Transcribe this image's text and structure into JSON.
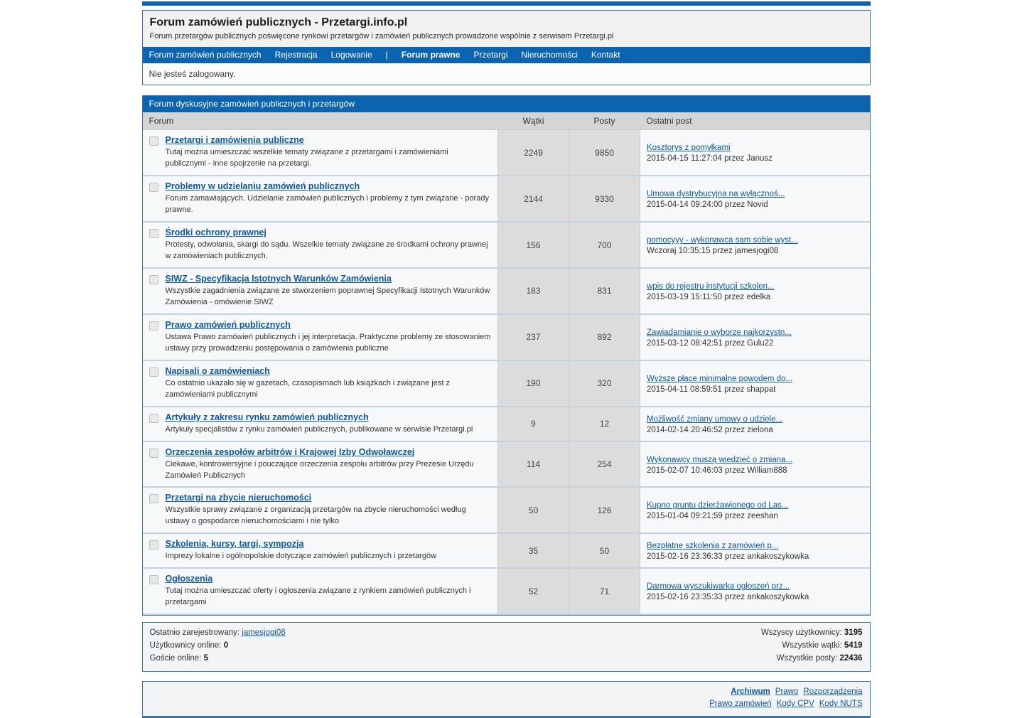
{
  "colors": {
    "accent": "#0d64ae",
    "border": "#3a72aa",
    "link": "#0f58a0"
  },
  "header": {
    "title": "Forum zamówień publicznych - Przetargi.info.pl",
    "subtitle": "Forum przetargów publicznych poświęcone rynkowi przetargów i zamówień publicznych prowadzone wspólnie z serwisem Przetargi.pl"
  },
  "nav": {
    "items": [
      {
        "label": "Forum zamówień publicznych"
      },
      {
        "label": "Rejestracja"
      },
      {
        "label": "Logowanie"
      },
      {
        "label": "|",
        "separator": true
      },
      {
        "label": "Forum prawne",
        "active": true
      },
      {
        "label": "Przetargi"
      },
      {
        "label": "Nieruchomości"
      },
      {
        "label": "Kontakt"
      }
    ]
  },
  "status": {
    "message": "Nie jesteś zalogowany."
  },
  "board": {
    "section_title": "Forum dyskusyjne zamówień publicznych i przetargów",
    "columns": {
      "forum": "Forum",
      "threads": "Wątki",
      "posts": "Posty",
      "last_post": "Ostatni post"
    },
    "forums": [
      {
        "name": "Przetargi i zamówienia publiczne",
        "description": "Tutaj można umieszczać wszelkie tematy związane z przetargami i zamówieniami publicznymi - inne spojrzenie na przetargi.",
        "threads": "2249",
        "posts": "9850",
        "last_post_title": "Kosztorys z pomyłkami",
        "last_post_meta": "2015-04-15 11:27:04 przez Janusz"
      },
      {
        "name": "Problemy w udzielaniu zamówień publicznych",
        "description": "Forum zamawiających. Udzielanie zamówień publicznych i problemy z tym związane - porady prawne.",
        "threads": "2144",
        "posts": "9330",
        "last_post_title": "Umowa dystrybucyjna na wyłącznoś...",
        "last_post_meta": "2015-04-14 09:24:00 przez Novid"
      },
      {
        "name": "Środki ochrony prawnej",
        "description": "Protesty, odwołania, skargi do sądu. Wszelkie tematy związane ze środkami ochrony prawnej w zamówieniach publicznych.",
        "threads": "156",
        "posts": "700",
        "last_post_title": "pomocyyy - wykonawca sam sobie wyst...",
        "last_post_meta": "Wczoraj 10:35:15 przez jamesjogi08"
      },
      {
        "name": "SIWZ - Specyfikacja Istotnych Warunków Zamówienia",
        "description": "Wszystkie zagadnienia związane ze stworzeniem poprawnej Specyfikacji Istotnych Warunków Zamówienia - omówienie SIWZ",
        "threads": "183",
        "posts": "831",
        "last_post_title": "wpis do rejestru instytucji szkolen...",
        "last_post_meta": "2015-03-19 15:11:50 przez edelka"
      },
      {
        "name": "Prawo zamówień publicznych",
        "description": "Ustawa Prawo zamówień publicznych i jej interpretacja. Praktyczne problemy ze stosowaniem ustawy przy prowadzeniu postępowania o zamówienia publiczne",
        "threads": "237",
        "posts": "892",
        "last_post_title": "Zawiadamianie o wyborze najkorzystn...",
        "last_post_meta": "2015-03-12 08:42:51 przez Gulu22"
      },
      {
        "name": "Napisali o zamówieniach",
        "description": "Co ostatnio ukazało się w gazetach, czasopismach lub książkach i związane jest z zamówieniami publicznymi",
        "threads": "190",
        "posts": "320",
        "last_post_title": "Wyższe płace minimalne powodem do...",
        "last_post_meta": "2015-04-11 08:59:51 przez shappat"
      },
      {
        "name": "Artykuły z zakresu rynku zamówień publicznych",
        "description": "Artykuły specjalistów z rynku zamówień publicznych, publikowane w serwisie Przetargi.pl",
        "threads": "9",
        "posts": "12",
        "last_post_title": "Możliwość zmiany umowy o udziele...",
        "last_post_meta": "2014-02-14 20:46:52 przez zielona"
      },
      {
        "name": "Orzeczenia zespołów arbitrów i Krajowej Izby Odwoławczej",
        "description": "Ciekawe, kontrowersyjne i pouczające orzeczenia zespołu arbitrów przy Prezesie Urzędu Zamówień Publicznych",
        "threads": "114",
        "posts": "254",
        "last_post_title": "Wykonawcy muszą wiedzieć o zmiana...",
        "last_post_meta": "2015-02-07 10:46:03 przez William888"
      },
      {
        "name": "Przetargi na zbycie nieruchomości",
        "description": "Wszystkie sprawy związane z organizacją przetargów na zbycie nieruchomości według ustawy o gospodarce nieruchomościami i nie tylko",
        "threads": "50",
        "posts": "126",
        "last_post_title": "Kupno gruntu dzierżawionego od Las...",
        "last_post_meta": "2015-01-04 09:21:59 przez zeeshan"
      },
      {
        "name": "Szkolenia, kursy, targi, sympozja",
        "description": "Imprezy lokalne i ogólnopolskie dotyczące zamówień publicznych i przetargów",
        "threads": "35",
        "posts": "50",
        "last_post_title": "Bezpłatne szkolenia z zamówień p...",
        "last_post_meta": "2015-02-16 23:36:33 przez ankakoszykowka"
      },
      {
        "name": "Ogłoszenia",
        "description": "Tutaj można umieszczać oferty i ogłoszenia związane z rynkiem zamówień publicznych i przetargami",
        "threads": "52",
        "posts": "71",
        "last_post_title": "Darmowa wyszukiwarka ogłoszeń prz...",
        "last_post_meta": "2015-02-16 23:35:33 przez ankakoszykowka"
      }
    ]
  },
  "stats": {
    "last_registered_label": "Ostatnio zarejestrowany:",
    "last_registered_user": "jamesjogi08",
    "users_online_label": "Użytkownicy online:",
    "users_online": "0",
    "guests_online_label": "Goście online:",
    "guests_online": "5",
    "all_users_label": "Wszyscy użytkownicy:",
    "all_users": "3195",
    "all_threads_label": "Wszystkie wątki:",
    "all_threads": "5419",
    "all_posts_label": "Wszystkie posty:",
    "all_posts": "22436"
  },
  "footer": {
    "rows": [
      [
        {
          "label": "Archiwum",
          "bold": true
        },
        {
          "label": "Prawo"
        },
        {
          "label": "Rozporządzenia"
        }
      ],
      [
        {
          "label": "Prawo zamówień"
        },
        {
          "label": "Kody CPV"
        },
        {
          "label": "Kody NUTS"
        }
      ]
    ]
  }
}
